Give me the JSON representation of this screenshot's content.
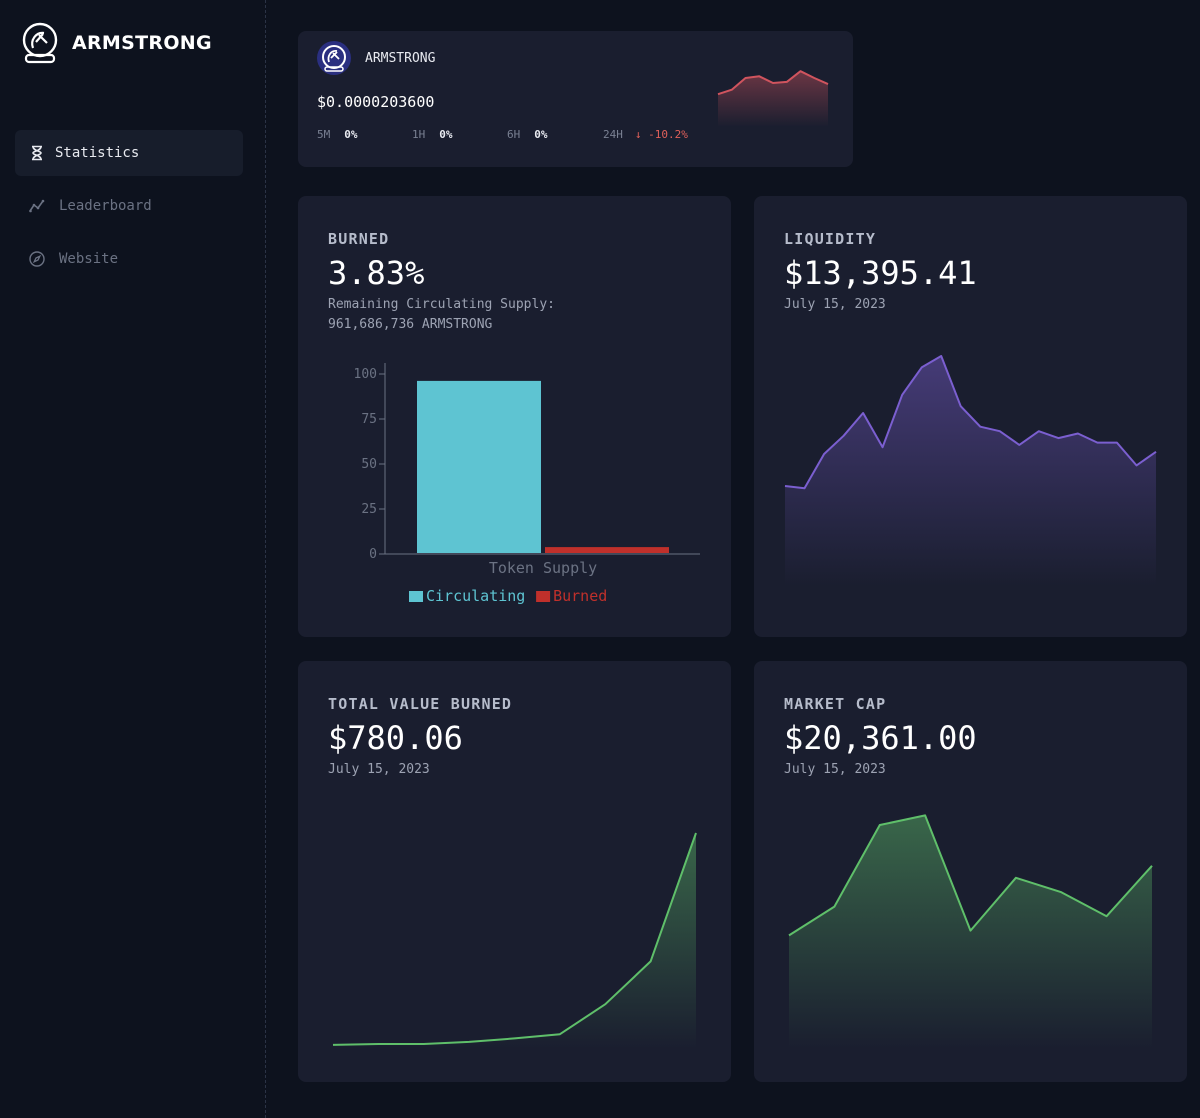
{
  "brand": {
    "name": "ARMSTRONG",
    "logo_icon": "astronaut-helmet-icon"
  },
  "sidebar": {
    "items": [
      {
        "label": "Statistics",
        "icon": "hourglass-icon",
        "active": true
      },
      {
        "label": "Leaderboard",
        "icon": "trend-line-icon",
        "active": false
      },
      {
        "label": "Website",
        "icon": "compass-icon",
        "active": false
      }
    ]
  },
  "ticker": {
    "name": "ARMSTRONG",
    "price": "$0.0000203600",
    "stats": [
      {
        "label": "5M",
        "value": "0%"
      },
      {
        "label": "1H",
        "value": "0%"
      },
      {
        "label": "6H",
        "value": "0%"
      },
      {
        "label": "24H",
        "value": "-10.2%",
        "arrow": "↓"
      }
    ],
    "sparkline": [
      0.55,
      0.63,
      0.84,
      0.87,
      0.75,
      0.77,
      0.96,
      0.84,
      0.73
    ]
  },
  "burned": {
    "title": "BURNED",
    "value": "3.83%",
    "sub_line1": "Remaining Circulating Supply:",
    "sub_line2": "961,686,736 ARMSTRONG"
  },
  "liquidity": {
    "title": "LIQUIDITY",
    "value": "$13,395.41",
    "date": "July 15, 2023"
  },
  "total_value_burned": {
    "title": "TOTAL VALUE BURNED",
    "value": "$780.06",
    "date": "July 15, 2023"
  },
  "market_cap": {
    "title": "MARKET CAP",
    "value": "$20,361.00",
    "date": "July 15, 2023"
  },
  "colors": {
    "circulating": "#5ec4d2",
    "burned": "#c0302b",
    "liquidity_line": "#7b5fd0",
    "green_line": "#5fbf6a",
    "red_line": "#d0545e"
  },
  "chart_data": [
    {
      "type": "bar",
      "categories": [
        "Token Supply"
      ],
      "xlabel": "Token Supply",
      "ylabel": "",
      "ylim": [
        0,
        100
      ],
      "yticks": [
        0,
        25,
        50,
        75,
        100
      ],
      "series": [
        {
          "name": "Circulating",
          "values": [
            96.17
          ]
        },
        {
          "name": "Burned",
          "values": [
            3.83
          ]
        }
      ],
      "legend": "bottom"
    },
    {
      "type": "area",
      "series": [
        {
          "values": [
            0.43,
            0.42,
            0.57,
            0.65,
            0.75,
            0.6,
            0.83,
            0.95,
            1.0,
            0.78,
            0.69,
            0.67,
            0.61,
            0.67,
            0.64,
            0.66,
            0.62,
            0.62,
            0.52,
            0.58
          ]
        }
      ]
    },
    {
      "type": "area",
      "series": [
        {
          "values": [
            0.01,
            0.014,
            0.014,
            0.024,
            0.04,
            0.06,
            0.2,
            0.4,
            1.0
          ]
        }
      ]
    },
    {
      "type": "area",
      "series": [
        {
          "values": [
            0.44,
            0.56,
            0.9,
            0.94,
            0.46,
            0.68,
            0.62,
            0.52,
            0.73
          ]
        }
      ]
    }
  ]
}
